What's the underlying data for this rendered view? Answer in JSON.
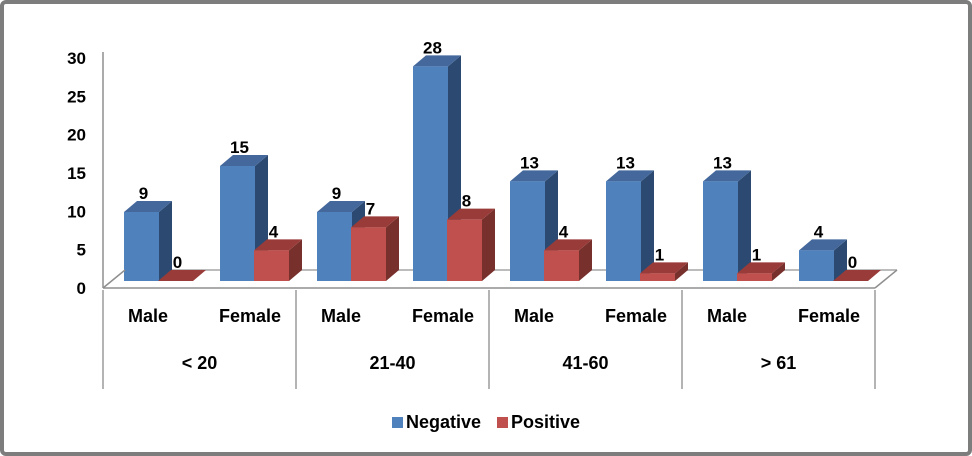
{
  "chart_data": {
    "type": "bar",
    "variant": "3d-clustered-column",
    "title": "",
    "xlabel": "",
    "ylabel": "",
    "groups": [
      "< 20",
      "21-40",
      "41-60",
      "> 61"
    ],
    "subcategories": [
      "Male",
      "Female"
    ],
    "series": [
      {
        "name": "Negative",
        "color": "#4F81BD",
        "top_color": "#44689C",
        "side_color": "#2C4A71",
        "values": [
          [
            9,
            15
          ],
          [
            9,
            28
          ],
          [
            13,
            13
          ],
          [
            13,
            4
          ]
        ]
      },
      {
        "name": "Positive",
        "color": "#C0504D",
        "top_color": "#993B38",
        "side_color": "#78302D",
        "values": [
          [
            0,
            4
          ],
          [
            7,
            8
          ],
          [
            4,
            1
          ],
          [
            1,
            0
          ]
        ]
      }
    ],
    "yticks": [
      0,
      5,
      10,
      15,
      20,
      25,
      30
    ],
    "ylim": [
      0,
      30
    ],
    "data_labels": true,
    "grid": false,
    "legend_position": "bottom"
  },
  "style": {
    "frame_border_color": "#7d7d7d",
    "axis_line_color": "#8f8f8f",
    "floor_line_color": "#8f8f8f",
    "separator_line_color": "#9a9a9a",
    "back_line_color": "#a6a6a6",
    "text_color": "#000000",
    "background": "#ffffff"
  }
}
